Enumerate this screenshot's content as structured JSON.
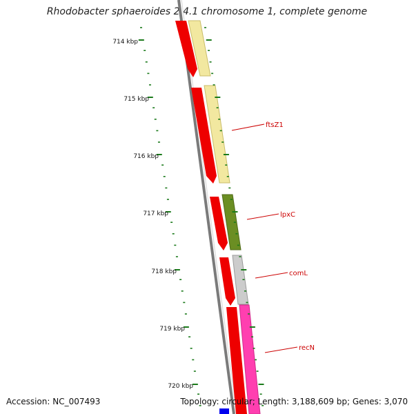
{
  "title": "Rhodobacter sphaeroides 2.4.1 chromosome 1, complete genome",
  "footer": {
    "accession": "Accession: NC_007493",
    "summary": "Topology: circular; Length: 3,188,609 bp; Genes: 3,070"
  },
  "ticks": [
    {
      "label": "714 kbp"
    },
    {
      "label": "715 kbp"
    },
    {
      "label": "716 kbp"
    },
    {
      "label": "717 kbp"
    },
    {
      "label": "718 kbp"
    },
    {
      "label": "719 kbp"
    },
    {
      "label": "720 kbp"
    }
  ],
  "genes": [
    {
      "name": "ftsZ1",
      "color": "#f2e8a0"
    },
    {
      "name": "lpxC",
      "color": "#6b8e23"
    },
    {
      "name": "comL",
      "color": "#c8c8c8"
    },
    {
      "name": "recN",
      "color": "#ff3fb0"
    }
  ],
  "colors": {
    "cds_strand": "#ff0000",
    "backbone": "#777777",
    "ticks": "#1a7a1a",
    "label_lines": "#cc0000",
    "blue_feature": "#0000ee"
  }
}
